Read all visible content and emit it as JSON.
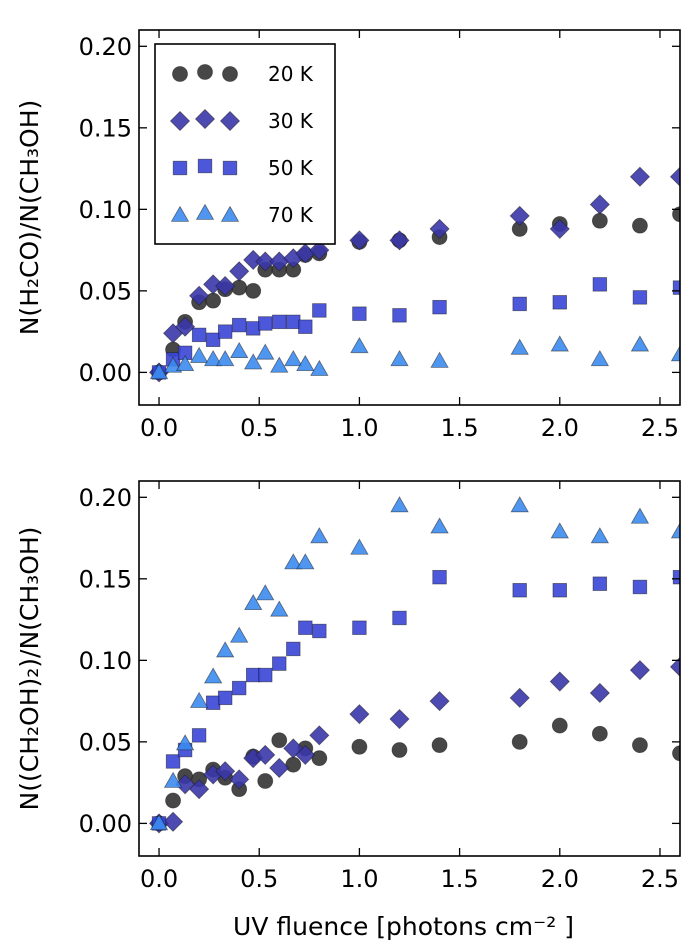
{
  "chart_data": [
    {
      "type": "scatter",
      "id": "top",
      "ylabel": "N(H₂CO)/N(CH₃OH)",
      "xlabel": "",
      "xlim": [
        -0.1,
        2.6
      ],
      "ylim": [
        -0.02,
        0.21
      ],
      "xticks": [
        0.0,
        0.5,
        1.0,
        1.5,
        2.0,
        2.5
      ],
      "xtick_labels": [
        "0.0",
        "0.5",
        "1.0",
        "1.5",
        "2.0",
        "2.5"
      ],
      "yticks": [
        0.0,
        0.05,
        0.1,
        0.15,
        0.2
      ],
      "ytick_labels": [
        "0.00",
        "0.05",
        "0.10",
        "0.15",
        "0.20"
      ],
      "legend": {
        "position": "top-left",
        "entries": [
          "20 K",
          "30 K",
          "50 K",
          "70 K"
        ]
      },
      "series": [
        {
          "name": "20 K",
          "marker": "circle",
          "color": "#333333",
          "x": [
            0.0,
            0.07,
            0.13,
            0.2,
            0.27,
            0.33,
            0.4,
            0.47,
            0.53,
            0.6,
            0.67,
            0.73,
            0.8,
            1.0,
            1.2,
            1.4,
            1.8,
            2.0,
            2.2,
            2.4,
            2.6
          ],
          "y": [
            0.0,
            0.014,
            0.031,
            0.043,
            0.044,
            0.051,
            0.052,
            0.05,
            0.063,
            0.063,
            0.063,
            0.072,
            0.073,
            0.08,
            0.081,
            0.083,
            0.088,
            0.091,
            0.093,
            0.09,
            0.097
          ]
        },
        {
          "name": "30 K",
          "marker": "diamond",
          "color": "#3a36a8",
          "x": [
            0.0,
            0.07,
            0.13,
            0.2,
            0.27,
            0.33,
            0.4,
            0.47,
            0.53,
            0.6,
            0.67,
            0.73,
            0.8,
            1.0,
            1.2,
            1.4,
            1.8,
            2.0,
            2.2,
            2.4,
            2.6
          ],
          "y": [
            0.0,
            0.024,
            0.028,
            0.047,
            0.054,
            0.053,
            0.062,
            0.069,
            0.068,
            0.068,
            0.07,
            0.073,
            0.075,
            0.081,
            0.081,
            0.088,
            0.096,
            0.088,
            0.103,
            0.12,
            0.12
          ]
        },
        {
          "name": "50 K",
          "marker": "square",
          "color": "#3a45d6",
          "x": [
            0.0,
            0.07,
            0.13,
            0.2,
            0.27,
            0.33,
            0.4,
            0.47,
            0.53,
            0.6,
            0.67,
            0.73,
            0.8,
            1.0,
            1.2,
            1.4,
            1.8,
            2.0,
            2.2,
            2.4,
            2.6
          ],
          "y": [
            0.0,
            0.008,
            0.012,
            0.023,
            0.02,
            0.025,
            0.029,
            0.027,
            0.03,
            0.031,
            0.031,
            0.028,
            0.038,
            0.036,
            0.035,
            0.04,
            0.042,
            0.043,
            0.054,
            0.046,
            0.052
          ]
        },
        {
          "name": "70 K",
          "marker": "triangle",
          "color": "#3c8bf0",
          "x": [
            0.0,
            0.07,
            0.13,
            0.2,
            0.27,
            0.33,
            0.4,
            0.47,
            0.53,
            0.6,
            0.67,
            0.73,
            0.8,
            1.0,
            1.2,
            1.4,
            1.8,
            2.0,
            2.2,
            2.4,
            2.6
          ],
          "y": [
            0.0,
            0.004,
            0.005,
            0.01,
            0.008,
            0.008,
            0.013,
            0.006,
            0.012,
            0.004,
            0.008,
            0.005,
            0.002,
            0.016,
            0.008,
            0.007,
            0.015,
            0.017,
            0.008,
            0.017,
            0.011
          ]
        }
      ]
    },
    {
      "type": "scatter",
      "id": "bottom",
      "ylabel": "N((CH₂OH)₂)/N(CH₃OH)",
      "xlabel": "UV fluence [photons cm⁻² ]",
      "xlim": [
        -0.1,
        2.6
      ],
      "ylim": [
        -0.02,
        0.21
      ],
      "xticks": [
        0.0,
        0.5,
        1.0,
        1.5,
        2.0,
        2.5
      ],
      "xtick_labels": [
        "0.0",
        "0.5",
        "1.0",
        "1.5",
        "2.0",
        "2.5"
      ],
      "yticks": [
        0.0,
        0.05,
        0.1,
        0.15,
        0.2
      ],
      "ytick_labels": [
        "0.00",
        "0.05",
        "0.10",
        "0.15",
        "0.20"
      ],
      "series": [
        {
          "name": "20 K",
          "marker": "circle",
          "color": "#333333",
          "x": [
            0.0,
            0.07,
            0.13,
            0.2,
            0.27,
            0.33,
            0.4,
            0.47,
            0.53,
            0.6,
            0.67,
            0.73,
            0.8,
            1.0,
            1.2,
            1.4,
            1.8,
            2.0,
            2.2,
            2.4,
            2.6
          ],
          "y": [
            0.0,
            0.014,
            0.029,
            0.027,
            0.033,
            0.028,
            0.021,
            0.041,
            0.026,
            0.051,
            0.036,
            0.046,
            0.04,
            0.047,
            0.045,
            0.048,
            0.05,
            0.06,
            0.055,
            0.048,
            0.043
          ]
        },
        {
          "name": "30 K",
          "marker": "diamond",
          "color": "#3a36a8",
          "x": [
            0.0,
            0.07,
            0.13,
            0.2,
            0.27,
            0.33,
            0.4,
            0.47,
            0.53,
            0.6,
            0.67,
            0.73,
            0.8,
            1.0,
            1.2,
            1.4,
            1.8,
            2.0,
            2.2,
            2.4,
            2.6
          ],
          "y": [
            0.0,
            0.001,
            0.024,
            0.021,
            0.03,
            0.032,
            0.027,
            0.04,
            0.042,
            0.034,
            0.046,
            0.042,
            0.054,
            0.067,
            0.064,
            0.075,
            0.077,
            0.087,
            0.08,
            0.094,
            0.096
          ]
        },
        {
          "name": "50 K",
          "marker": "square",
          "color": "#3a45d6",
          "x": [
            0.0,
            0.07,
            0.13,
            0.2,
            0.27,
            0.33,
            0.4,
            0.47,
            0.53,
            0.6,
            0.67,
            0.73,
            0.8,
            1.0,
            1.2,
            1.4,
            1.8,
            2.0,
            2.2,
            2.4,
            2.6
          ],
          "y": [
            0.0,
            0.038,
            0.045,
            0.054,
            0.074,
            0.077,
            0.083,
            0.091,
            0.091,
            0.098,
            0.107,
            0.12,
            0.118,
            0.12,
            0.126,
            0.151,
            0.143,
            0.143,
            0.147,
            0.145,
            0.151
          ]
        },
        {
          "name": "70 K",
          "marker": "triangle",
          "color": "#3c8bf0",
          "x": [
            0.0,
            0.07,
            0.13,
            0.2,
            0.27,
            0.33,
            0.4,
            0.47,
            0.53,
            0.6,
            0.67,
            0.73,
            0.8,
            1.0,
            1.2,
            1.4,
            1.8,
            2.0,
            2.2,
            2.4,
            2.6
          ],
          "y": [
            0.0,
            0.026,
            0.049,
            0.075,
            0.09,
            0.106,
            0.115,
            0.135,
            0.141,
            0.131,
            0.16,
            0.16,
            0.176,
            0.169,
            0.195,
            0.182,
            0.195,
            0.179,
            0.176,
            0.188,
            0.179
          ]
        }
      ]
    }
  ]
}
